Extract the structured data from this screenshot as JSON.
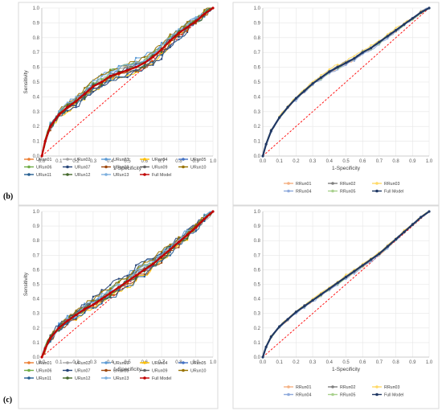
{
  "panel_tags": {
    "b": "(b)",
    "c": "(c)"
  },
  "colors": {
    "URun01": "#ed7d31",
    "URun02": "#a5a5a5",
    "URun03": "#5b9bd5",
    "URun04": "#ffc000",
    "URun05": "#4472c4",
    "URun06": "#70ad47",
    "URun07": "#264478",
    "URun08": "#9e480e",
    "URun09": "#636363",
    "URun10": "#997300",
    "URun11": "#255e91",
    "URun12": "#43682b",
    "URun13": "#7cafdd",
    "Full Model": "#c00000",
    "RRun01": "#f4b183",
    "RRun02": "#7f7f7f",
    "RRun03": "#ffd966",
    "RRun04": "#8faadc",
    "RRun05": "#a9d18e",
    "Full Model R": "#203864"
  },
  "chart_data": [
    {
      "id": "top-left",
      "type": "line",
      "xlabel": "1-Specificity",
      "ylabel": "Sensitivity",
      "xlim": [
        0,
        1
      ],
      "ylim": [
        0,
        1
      ],
      "grid": true,
      "legend": "bottom",
      "spread": 0.05,
      "reference_line": "y = x",
      "series": [
        {
          "name": "URun01"
        },
        {
          "name": "URun02"
        },
        {
          "name": "URun03"
        },
        {
          "name": "URun04"
        },
        {
          "name": "URun05"
        },
        {
          "name": "URun06"
        },
        {
          "name": "URun07"
        },
        {
          "name": "URun08"
        },
        {
          "name": "URun09"
        },
        {
          "name": "URun10"
        },
        {
          "name": "URun11"
        },
        {
          "name": "URun12"
        },
        {
          "name": "URun13"
        },
        {
          "name": "Full Model",
          "x": [
            0,
            0.02,
            0.05,
            0.1,
            0.15,
            0.2,
            0.25,
            0.3,
            0.35,
            0.4,
            0.45,
            0.5,
            0.55,
            0.6,
            0.65,
            0.7,
            0.75,
            0.8,
            0.85,
            0.9,
            0.95,
            1.0
          ],
          "y": [
            0,
            0.1,
            0.2,
            0.28,
            0.33,
            0.37,
            0.42,
            0.47,
            0.5,
            0.54,
            0.56,
            0.58,
            0.6,
            0.63,
            0.67,
            0.72,
            0.78,
            0.83,
            0.87,
            0.91,
            0.96,
            1.0
          ]
        }
      ]
    },
    {
      "id": "top-right",
      "type": "line",
      "xlabel": "1-Specificity",
      "ylabel": "",
      "xlim": [
        0,
        1
      ],
      "ylim": [
        0,
        1
      ],
      "grid": true,
      "legend": "bottom",
      "spread": 0.02,
      "reference_line": "y = x",
      "series": [
        {
          "name": "RRun01"
        },
        {
          "name": "RRun02"
        },
        {
          "name": "RRun03"
        },
        {
          "name": "RRun04"
        },
        {
          "name": "RRun05"
        },
        {
          "name": "Full Model",
          "x": [
            0,
            0.02,
            0.05,
            0.1,
            0.15,
            0.2,
            0.25,
            0.3,
            0.35,
            0.4,
            0.45,
            0.5,
            0.55,
            0.6,
            0.65,
            0.7,
            0.75,
            0.8,
            0.85,
            0.9,
            0.95,
            1.0
          ],
          "y": [
            0,
            0.08,
            0.17,
            0.26,
            0.33,
            0.39,
            0.44,
            0.49,
            0.53,
            0.57,
            0.6,
            0.63,
            0.66,
            0.7,
            0.73,
            0.77,
            0.81,
            0.85,
            0.89,
            0.93,
            0.97,
            1.0
          ]
        }
      ]
    },
    {
      "id": "bottom-left",
      "type": "line",
      "xlabel": "1-Specificity",
      "ylabel": "Sensitivity",
      "xlim": [
        0,
        1
      ],
      "ylim": [
        0,
        1
      ],
      "grid": true,
      "legend": "bottom",
      "spread": 0.05,
      "reference_line": "y = x",
      "series": [
        {
          "name": "URun01"
        },
        {
          "name": "URun02"
        },
        {
          "name": "URun03"
        },
        {
          "name": "URun04"
        },
        {
          "name": "URun05"
        },
        {
          "name": "URun06"
        },
        {
          "name": "URun07"
        },
        {
          "name": "URun08"
        },
        {
          "name": "URun09"
        },
        {
          "name": "URun10"
        },
        {
          "name": "URun11"
        },
        {
          "name": "URun12"
        },
        {
          "name": "URun13"
        },
        {
          "name": "Full Model",
          "x": [
            0,
            0.02,
            0.05,
            0.1,
            0.15,
            0.2,
            0.25,
            0.3,
            0.35,
            0.4,
            0.45,
            0.5,
            0.55,
            0.6,
            0.65,
            0.7,
            0.75,
            0.8,
            0.85,
            0.9,
            0.95,
            1.0
          ],
          "y": [
            0,
            0.06,
            0.13,
            0.2,
            0.25,
            0.29,
            0.33,
            0.36,
            0.4,
            0.44,
            0.48,
            0.52,
            0.56,
            0.6,
            0.64,
            0.69,
            0.74,
            0.79,
            0.84,
            0.89,
            0.95,
            1.0
          ]
        }
      ]
    },
    {
      "id": "bottom-right",
      "type": "line",
      "xlabel": "1-Specificity",
      "ylabel": "",
      "xlim": [
        0,
        1
      ],
      "ylim": [
        0,
        1
      ],
      "grid": true,
      "legend": "bottom",
      "spread": 0.015,
      "reference_line": "y = x",
      "series": [
        {
          "name": "RRun01"
        },
        {
          "name": "RRun02"
        },
        {
          "name": "RRun03"
        },
        {
          "name": "RRun04"
        },
        {
          "name": "RRun05"
        },
        {
          "name": "Full Model",
          "x": [
            0,
            0.02,
            0.05,
            0.1,
            0.15,
            0.2,
            0.25,
            0.3,
            0.35,
            0.4,
            0.45,
            0.5,
            0.55,
            0.6,
            0.65,
            0.7,
            0.75,
            0.8,
            0.85,
            0.9,
            0.95,
            1.0
          ],
          "y": [
            0,
            0.07,
            0.14,
            0.21,
            0.26,
            0.31,
            0.35,
            0.39,
            0.43,
            0.47,
            0.51,
            0.55,
            0.59,
            0.63,
            0.67,
            0.71,
            0.76,
            0.81,
            0.86,
            0.91,
            0.96,
            1.0
          ]
        }
      ]
    }
  ]
}
